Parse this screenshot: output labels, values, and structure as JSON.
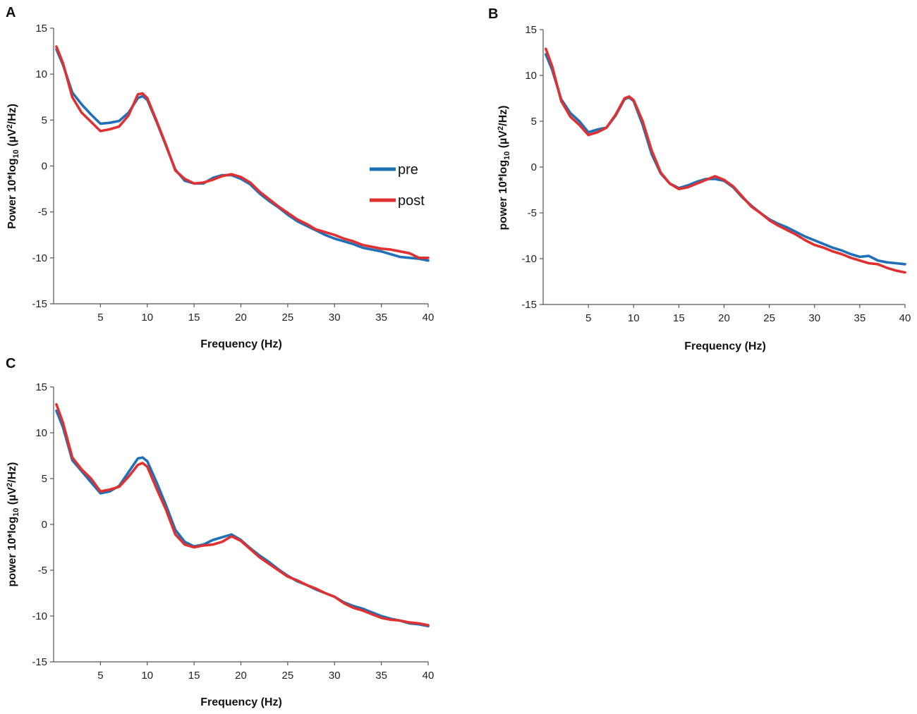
{
  "chart_data": [
    {
      "type": "line",
      "panel_label": "A",
      "xlabel": "Frequency (Hz)",
      "ylabel": {
        "prefix": "Power 10*log",
        "sub": "10",
        "unit_open": " (µV",
        "sup": "2",
        "unit_close": "/Hz)"
      },
      "xlim": [
        0,
        40
      ],
      "ylim": [
        -15,
        15
      ],
      "xticks": [
        "5",
        "10",
        "15",
        "20",
        "25",
        "30",
        "35",
        "40"
      ],
      "yticks": [
        "15",
        "10",
        "5",
        "0",
        "-5",
        "-10",
        "-15"
      ],
      "legend": {
        "position": "center-right",
        "entries": [
          "pre",
          "post"
        ]
      },
      "series": [
        {
          "name": "pre",
          "color": "#2070b8",
          "x": [
            0.3,
            1,
            2,
            3,
            4,
            5,
            6,
            7,
            8,
            9,
            9.5,
            10,
            11,
            12,
            13,
            14,
            15,
            16,
            17,
            18,
            19,
            20,
            21,
            22,
            23,
            24,
            25,
            26,
            27,
            28,
            29,
            30,
            31,
            32,
            33,
            34,
            35,
            36,
            37,
            38,
            39,
            40
          ],
          "y": [
            12.7,
            11,
            8,
            6.7,
            5.6,
            4.6,
            4.7,
            4.9,
            5.8,
            7.4,
            7.6,
            7.2,
            4.8,
            2.2,
            -0.4,
            -1.6,
            -1.9,
            -1.9,
            -1.3,
            -1,
            -1,
            -1.4,
            -2,
            -3,
            -3.8,
            -4.5,
            -5.3,
            -6,
            -6.5,
            -7,
            -7.5,
            -7.9,
            -8.2,
            -8.5,
            -8.9,
            -9.1,
            -9.3,
            -9.6,
            -9.9,
            -10,
            -10.1,
            -10.3
          ]
        },
        {
          "name": "post",
          "color": "#e03030",
          "x": [
            0.3,
            1,
            2,
            3,
            4,
            5,
            6,
            7,
            8,
            9,
            9.5,
            10,
            11,
            12,
            13,
            14,
            15,
            16,
            17,
            18,
            19,
            20,
            21,
            22,
            23,
            24,
            25,
            26,
            27,
            28,
            29,
            30,
            31,
            32,
            33,
            34,
            35,
            36,
            37,
            38,
            39,
            40
          ],
          "y": [
            13,
            11.2,
            7.5,
            5.8,
            4.8,
            3.8,
            4,
            4.3,
            5.5,
            7.8,
            7.9,
            7.4,
            4.9,
            2.3,
            -0.5,
            -1.4,
            -1.9,
            -1.8,
            -1.5,
            -1.1,
            -0.9,
            -1.2,
            -1.8,
            -2.8,
            -3.6,
            -4.4,
            -5.1,
            -5.8,
            -6.3,
            -6.9,
            -7.2,
            -7.5,
            -7.9,
            -8.2,
            -8.6,
            -8.8,
            -9,
            -9.1,
            -9.3,
            -9.5,
            -10,
            -10
          ]
        }
      ]
    },
    {
      "type": "line",
      "panel_label": "B",
      "xlabel": "Frequency (Hz)",
      "ylabel": {
        "prefix": "power 10*log",
        "sub": "10",
        "unit_open": " (µV",
        "sup": "2",
        "unit_close": "/Hz)"
      },
      "xlim": [
        0,
        40
      ],
      "ylim": [
        -15,
        15
      ],
      "xticks": [
        "5",
        "10",
        "15",
        "20",
        "25",
        "30",
        "35",
        "40"
      ],
      "yticks": [
        "15",
        "10",
        "5",
        "0",
        "-5",
        "-10",
        "-15"
      ],
      "series": [
        {
          "name": "pre",
          "color": "#2070b8",
          "x": [
            0.3,
            1,
            2,
            3,
            4,
            5,
            6,
            7,
            8,
            9,
            9.5,
            10,
            11,
            12,
            13,
            14,
            15,
            16,
            17,
            18,
            19,
            20,
            21,
            22,
            23,
            24,
            25,
            26,
            27,
            28,
            29,
            30,
            31,
            32,
            33,
            34,
            35,
            36,
            37,
            38,
            39,
            40
          ],
          "y": [
            12.3,
            10.6,
            7.4,
            5.9,
            5,
            3.8,
            4.1,
            4.3,
            5.6,
            7.4,
            7.6,
            7.2,
            4.6,
            1.4,
            -0.7,
            -1.8,
            -2.3,
            -2,
            -1.6,
            -1.3,
            -1.3,
            -1.5,
            -2.2,
            -3.3,
            -4.2,
            -5,
            -5.7,
            -6.2,
            -6.6,
            -7.1,
            -7.6,
            -8,
            -8.4,
            -8.8,
            -9.1,
            -9.5,
            -9.8,
            -9.7,
            -10.2,
            -10.4,
            -10.5,
            -10.6
          ]
        },
        {
          "name": "post",
          "color": "#e03030",
          "x": [
            0.3,
            1,
            2,
            3,
            4,
            5,
            6,
            7,
            8,
            9,
            9.5,
            10,
            11,
            12,
            13,
            14,
            15,
            16,
            17,
            18,
            19,
            20,
            21,
            22,
            23,
            24,
            25,
            26,
            27,
            28,
            29,
            30,
            31,
            32,
            33,
            34,
            35,
            36,
            37,
            38,
            39,
            40
          ],
          "y": [
            12.9,
            11,
            7.2,
            5.5,
            4.6,
            3.5,
            3.8,
            4.3,
            5.7,
            7.5,
            7.7,
            7.3,
            5,
            1.8,
            -0.6,
            -1.8,
            -2.4,
            -2.2,
            -1.8,
            -1.4,
            -1,
            -1.4,
            -2.1,
            -3.2,
            -4.3,
            -5,
            -5.8,
            -6.4,
            -6.9,
            -7.4,
            -8,
            -8.5,
            -8.8,
            -9.2,
            -9.5,
            -9.9,
            -10.2,
            -10.5,
            -10.6,
            -11,
            -11.3,
            -11.5
          ]
        }
      ]
    },
    {
      "type": "line",
      "panel_label": "C",
      "xlabel": "Frequency (Hz)",
      "ylabel": {
        "prefix": "power 10*log",
        "sub": "10",
        "unit_open": " (µV",
        "sup": "2",
        "unit_close": "/Hz)"
      },
      "xlim": [
        0,
        40
      ],
      "ylim": [
        -15,
        15
      ],
      "xticks": [
        "5",
        "10",
        "15",
        "20",
        "25",
        "30",
        "35",
        "40"
      ],
      "yticks": [
        "15",
        "10",
        "5",
        "0",
        "-5",
        "-10",
        "-15"
      ],
      "series": [
        {
          "name": "pre",
          "color": "#2070b8",
          "x": [
            0.3,
            1,
            2,
            3,
            4,
            5,
            6,
            7,
            8,
            9,
            9.5,
            10,
            11,
            12,
            13,
            14,
            15,
            16,
            17,
            18,
            19,
            20,
            21,
            22,
            23,
            24,
            25,
            26,
            27,
            28,
            29,
            30,
            31,
            32,
            33,
            34,
            35,
            36,
            37,
            38,
            39,
            40
          ],
          "y": [
            12.4,
            10.6,
            7,
            5.8,
            4.6,
            3.4,
            3.6,
            4.2,
            5.7,
            7.2,
            7.3,
            6.9,
            4.6,
            2.1,
            -0.6,
            -1.9,
            -2.4,
            -2.2,
            -1.7,
            -1.4,
            -1.1,
            -1.7,
            -2.6,
            -3.4,
            -4.1,
            -4.9,
            -5.6,
            -6.2,
            -6.6,
            -7.1,
            -7.5,
            -7.9,
            -8.5,
            -8.9,
            -9.2,
            -9.6,
            -10,
            -10.3,
            -10.5,
            -10.8,
            -10.9,
            -11.1
          ]
        },
        {
          "name": "post",
          "color": "#e03030",
          "x": [
            0.3,
            1,
            2,
            3,
            4,
            5,
            6,
            7,
            8,
            9,
            9.5,
            10,
            11,
            12,
            13,
            14,
            15,
            16,
            17,
            18,
            19,
            20,
            21,
            22,
            23,
            24,
            25,
            26,
            27,
            28,
            29,
            30,
            31,
            32,
            33,
            34,
            35,
            36,
            37,
            38,
            39,
            40
          ],
          "y": [
            13.1,
            11.1,
            7.3,
            6,
            5,
            3.6,
            3.8,
            4.1,
            5.2,
            6.5,
            6.7,
            6.3,
            3.9,
            1.6,
            -1.1,
            -2.2,
            -2.5,
            -2.3,
            -2.2,
            -1.9,
            -1.3,
            -1.8,
            -2.7,
            -3.6,
            -4.3,
            -5,
            -5.7,
            -6.1,
            -6.6,
            -7,
            -7.5,
            -7.9,
            -8.6,
            -9.1,
            -9.4,
            -9.8,
            -10.2,
            -10.4,
            -10.5,
            -10.7,
            -10.8,
            -11
          ]
        }
      ]
    }
  ]
}
